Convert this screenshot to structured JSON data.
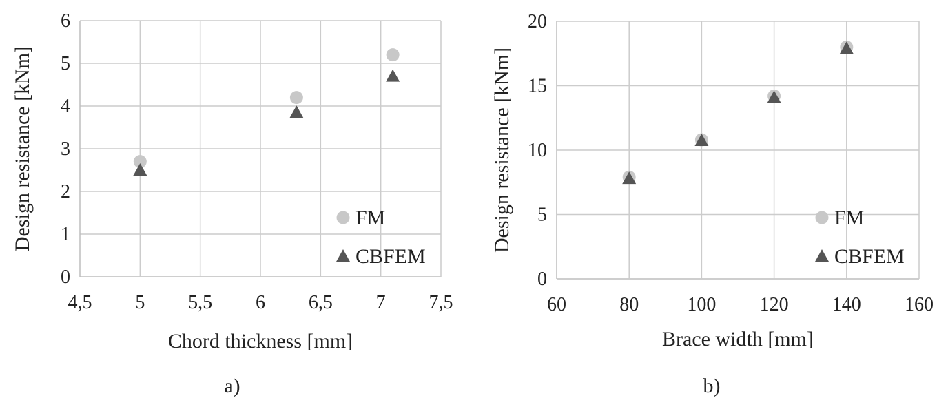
{
  "chart_data": [
    {
      "type": "scatter",
      "panel_label": "a)",
      "xlabel": "Chord thickness [mm]",
      "ylabel": "Design resistance [kNm]",
      "xlim": [
        4.5,
        7.5
      ],
      "ylim": [
        0,
        6
      ],
      "x_ticks": [
        "4,5",
        "5",
        "5,5",
        "6",
        "6,5",
        "7",
        "7,5"
      ],
      "y_ticks": [
        "0",
        "1",
        "2",
        "3",
        "4",
        "5",
        "6"
      ],
      "grid": true,
      "legend_position": "bottom-right",
      "series": [
        {
          "name": "FM",
          "marker": "circle",
          "color": "#c8c8c8",
          "points": [
            {
              "x": 5,
              "y": 2.7
            },
            {
              "x": 6.3,
              "y": 4.2
            },
            {
              "x": 7.1,
              "y": 5.2
            }
          ]
        },
        {
          "name": "CBFEM",
          "marker": "triangle",
          "color": "#555555",
          "points": [
            {
              "x": 5,
              "y": 2.5
            },
            {
              "x": 6.3,
              "y": 3.85
            },
            {
              "x": 7.1,
              "y": 4.7
            }
          ]
        }
      ]
    },
    {
      "type": "scatter",
      "panel_label": "b)",
      "xlabel": "Brace width [mm]",
      "ylabel": "Design resistance [kNm]",
      "xlim": [
        60,
        160
      ],
      "ylim": [
        0,
        20
      ],
      "x_ticks": [
        "60",
        "80",
        "100",
        "120",
        "140",
        "160"
      ],
      "y_ticks": [
        "0",
        "5",
        "10",
        "15",
        "20"
      ],
      "grid": true,
      "legend_position": "bottom-right",
      "series": [
        {
          "name": "FM",
          "marker": "circle",
          "color": "#c8c8c8",
          "points": [
            {
              "x": 80,
              "y": 7.9
            },
            {
              "x": 100,
              "y": 10.8
            },
            {
              "x": 120,
              "y": 14.2
            },
            {
              "x": 140,
              "y": 18
            }
          ]
        },
        {
          "name": "CBFEM",
          "marker": "triangle",
          "color": "#555555",
          "points": [
            {
              "x": 80,
              "y": 7.8
            },
            {
              "x": 100,
              "y": 10.75
            },
            {
              "x": 120,
              "y": 14.1
            },
            {
              "x": 140,
              "y": 17.9
            }
          ]
        }
      ]
    }
  ]
}
